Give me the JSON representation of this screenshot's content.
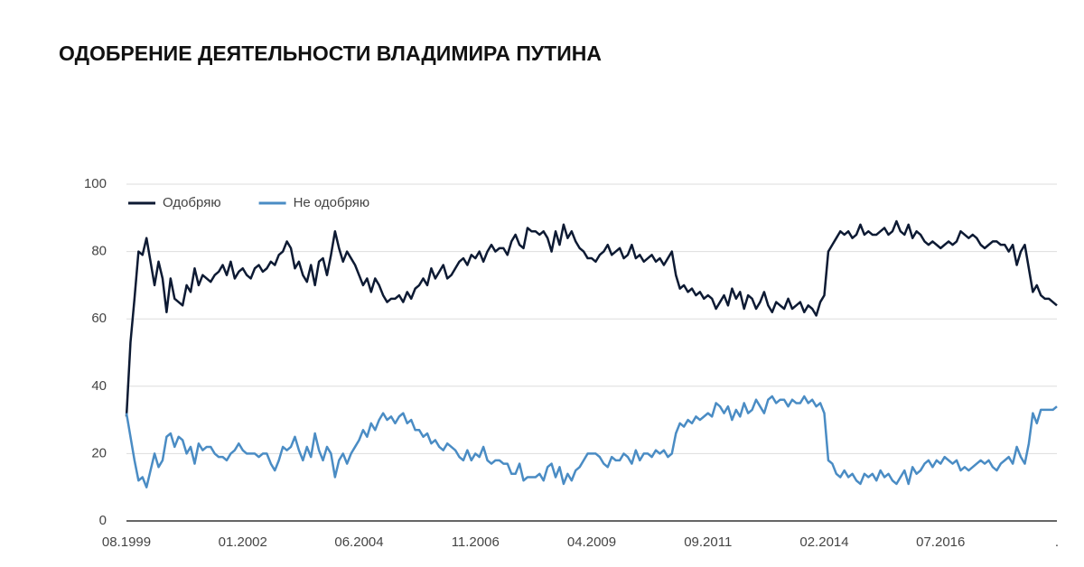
{
  "chart_data": {
    "type": "line",
    "title": "ОДОБРЕНИЕ ДЕЯТЕЛЬНОСТИ ВЛАДИМИРА ПУТИНА",
    "categories": [
      "08.1999",
      null,
      null,
      null,
      null,
      null,
      null,
      null,
      null,
      null,
      null,
      null,
      null,
      null,
      null,
      null,
      null,
      null,
      null,
      null,
      null,
      null,
      null,
      null,
      null,
      null,
      null,
      null,
      null,
      "01.2002",
      null,
      null,
      null,
      null,
      null,
      null,
      null,
      null,
      null,
      null,
      null,
      null,
      null,
      null,
      null,
      null,
      null,
      null,
      null,
      null,
      null,
      null,
      null,
      null,
      null,
      null,
      null,
      null,
      "06.2004",
      null,
      null,
      null,
      null,
      null,
      null,
      null,
      null,
      null,
      null,
      null,
      null,
      null,
      null,
      null,
      null,
      null,
      null,
      null,
      null,
      null,
      null,
      null,
      null,
      null,
      null,
      null,
      null,
      "11.2006",
      null,
      null,
      null,
      null,
      null,
      null,
      null,
      null,
      null,
      null,
      null,
      null,
      null,
      null,
      null,
      null,
      null,
      null,
      null,
      null,
      null,
      null,
      null,
      null,
      null,
      null,
      null,
      null,
      "04.2009",
      null,
      null,
      null,
      null,
      null,
      null,
      null,
      null,
      null,
      null,
      null,
      null,
      null,
      null,
      null,
      null,
      null,
      null,
      null,
      null,
      null,
      null,
      null,
      null,
      null,
      null,
      null,
      null,
      "09.2011",
      null,
      null,
      null,
      null,
      null,
      null,
      null,
      null,
      null,
      null,
      null,
      null,
      null,
      null,
      null,
      null,
      null,
      null,
      null,
      null,
      null,
      null,
      null,
      null,
      null,
      null,
      null,
      null,
      "02.2014",
      null,
      null,
      null,
      null,
      null,
      null,
      null,
      null,
      null,
      null,
      null,
      null,
      null,
      null,
      null,
      null,
      null,
      null,
      null,
      null,
      null,
      null,
      null,
      null,
      null,
      null,
      null,
      null,
      "07.2016",
      null,
      null,
      null,
      null,
      null,
      null,
      null,
      null,
      null,
      null,
      null,
      null,
      null,
      null,
      null,
      null,
      null,
      null,
      null,
      null,
      null,
      null,
      null,
      null,
      null,
      null,
      null,
      null,
      "."
    ],
    "series": [
      {
        "name": "Одобряю",
        "color": "#0d1a33",
        "values": [
          31,
          53,
          66,
          80,
          79,
          84,
          77,
          70,
          77,
          72,
          62,
          72,
          66,
          65,
          64,
          70,
          68,
          75,
          70,
          73,
          72,
          71,
          73,
          74,
          76,
          73,
          77,
          72,
          74,
          75,
          73,
          72,
          75,
          76,
          74,
          75,
          77,
          76,
          79,
          80,
          83,
          81,
          75,
          77,
          73,
          71,
          76,
          70,
          77,
          78,
          73,
          79,
          86,
          81,
          77,
          80,
          78,
          76,
          73,
          70,
          72,
          68,
          72,
          70,
          67,
          65,
          66,
          66,
          67,
          65,
          68,
          66,
          69,
          70,
          72,
          70,
          75,
          72,
          74,
          76,
          72,
          73,
          75,
          77,
          78,
          76,
          79,
          78,
          80,
          77,
          80,
          82,
          80,
          81,
          81,
          79,
          83,
          85,
          82,
          81,
          87,
          86,
          86,
          85,
          86,
          84,
          80,
          86,
          82,
          88,
          84,
          86,
          83,
          81,
          80,
          78,
          78,
          77,
          79,
          80,
          82,
          79,
          80,
          81,
          78,
          79,
          82,
          78,
          79,
          77,
          78,
          79,
          77,
          78,
          76,
          78,
          80,
          73,
          69,
          70,
          68,
          69,
          67,
          68,
          66,
          67,
          66,
          63,
          65,
          67,
          64,
          69,
          66,
          68,
          63,
          67,
          66,
          63,
          65,
          68,
          64,
          62,
          65,
          64,
          63,
          66,
          63,
          64,
          65,
          62,
          64,
          63,
          61,
          65,
          67,
          80,
          82,
          84,
          86,
          85,
          86,
          84,
          85,
          88,
          85,
          86,
          85,
          85,
          86,
          87,
          85,
          86,
          89,
          86,
          85,
          88,
          84,
          86,
          85,
          83,
          82,
          83,
          82,
          81,
          82,
          83,
          82,
          83,
          86,
          85,
          84,
          85,
          84,
          82,
          81,
          82,
          83,
          83,
          82,
          82,
          80,
          82,
          76,
          80,
          82,
          75,
          68,
          70,
          67,
          66,
          66,
          65,
          64
        ]
      },
      {
        "name": "Не одобряю",
        "color": "#4a8cc4",
        "values": [
          32,
          25,
          18,
          12,
          13,
          10,
          15,
          20,
          16,
          18,
          25,
          26,
          22,
          25,
          24,
          20,
          22,
          17,
          23,
          21,
          22,
          22,
          20,
          19,
          19,
          18,
          20,
          21,
          23,
          21,
          20,
          20,
          20,
          19,
          20,
          20,
          17,
          15,
          18,
          22,
          21,
          22,
          25,
          21,
          18,
          22,
          19,
          26,
          21,
          18,
          22,
          20,
          13,
          18,
          20,
          17,
          20,
          22,
          24,
          27,
          25,
          29,
          27,
          30,
          32,
          30,
          31,
          29,
          31,
          32,
          29,
          30,
          27,
          27,
          25,
          26,
          23,
          24,
          22,
          21,
          23,
          22,
          21,
          19,
          18,
          21,
          18,
          20,
          19,
          22,
          18,
          17,
          18,
          18,
          17,
          17,
          14,
          14,
          17,
          12,
          13,
          13,
          13,
          14,
          12,
          16,
          17,
          13,
          16,
          11,
          14,
          12,
          15,
          16,
          18,
          20,
          20,
          20,
          19,
          17,
          16,
          19,
          18,
          18,
          20,
          19,
          17,
          21,
          18,
          20,
          20,
          19,
          21,
          20,
          21,
          19,
          20,
          26,
          29,
          28,
          30,
          29,
          31,
          30,
          31,
          32,
          31,
          35,
          34,
          32,
          34,
          30,
          33,
          31,
          35,
          32,
          33,
          36,
          34,
          32,
          36,
          37,
          35,
          36,
          36,
          34,
          36,
          35,
          35,
          37,
          35,
          36,
          34,
          35,
          32,
          18,
          17,
          14,
          13,
          15,
          13,
          14,
          12,
          11,
          14,
          13,
          14,
          12,
          15,
          13,
          14,
          12,
          11,
          13,
          15,
          11,
          16,
          14,
          15,
          17,
          18,
          16,
          18,
          17,
          19,
          18,
          17,
          18,
          15,
          16,
          15,
          16,
          17,
          18,
          17,
          18,
          16,
          15,
          17,
          18,
          19,
          17,
          22,
          19,
          17,
          23,
          32,
          29,
          33,
          33,
          33,
          33,
          34
        ]
      }
    ],
    "ylim": [
      0,
      100
    ],
    "yticks": [
      0,
      20,
      40,
      60,
      80,
      100
    ],
    "grid": true,
    "legend": "top-left"
  }
}
